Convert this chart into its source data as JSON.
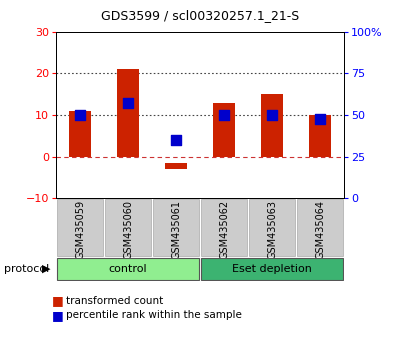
{
  "title": "GDS3599 / scl00320257.1_21-S",
  "samples": [
    "GSM435059",
    "GSM435060",
    "GSM435061",
    "GSM435062",
    "GSM435063",
    "GSM435064"
  ],
  "red_bar_bottoms": [
    0,
    0,
    -1.5,
    0,
    0,
    0
  ],
  "red_bar_heights": [
    11,
    21,
    -1.5,
    13,
    15,
    10
  ],
  "blue_dot_left_values": [
    10,
    13,
    4,
    10,
    10,
    9
  ],
  "groups": [
    {
      "label": "control",
      "start": 0,
      "end": 3,
      "color": "#90ee90"
    },
    {
      "label": "Eset depletion",
      "start": 3,
      "end": 6,
      "color": "#3cb371"
    }
  ],
  "protocol_label": "protocol",
  "ylim_left": [
    -10,
    30
  ],
  "right_yticks_left_vals": [
    -10,
    0,
    10,
    20,
    30
  ],
  "right_yticklabels": [
    "0",
    "25",
    "50",
    "75",
    "100%"
  ],
  "left_yticks": [
    -10,
    0,
    10,
    20,
    30
  ],
  "hline_y": [
    0,
    10,
    20
  ],
  "hline_styles": [
    "dashed",
    "dotted",
    "dotted"
  ],
  "hline_colors": [
    "#cc3333",
    "#444444",
    "#444444"
  ],
  "bar_color": "#cc2200",
  "dot_color": "#0000cc",
  "bar_width": 0.45,
  "dot_size": 55,
  "legend_red": "transformed count",
  "legend_blue": "percentile rank within the sample",
  "background_color": "#ffffff",
  "plot_bg": "#ffffff",
  "tick_bg": "#cccccc",
  "tick_border": "#aaaaaa"
}
